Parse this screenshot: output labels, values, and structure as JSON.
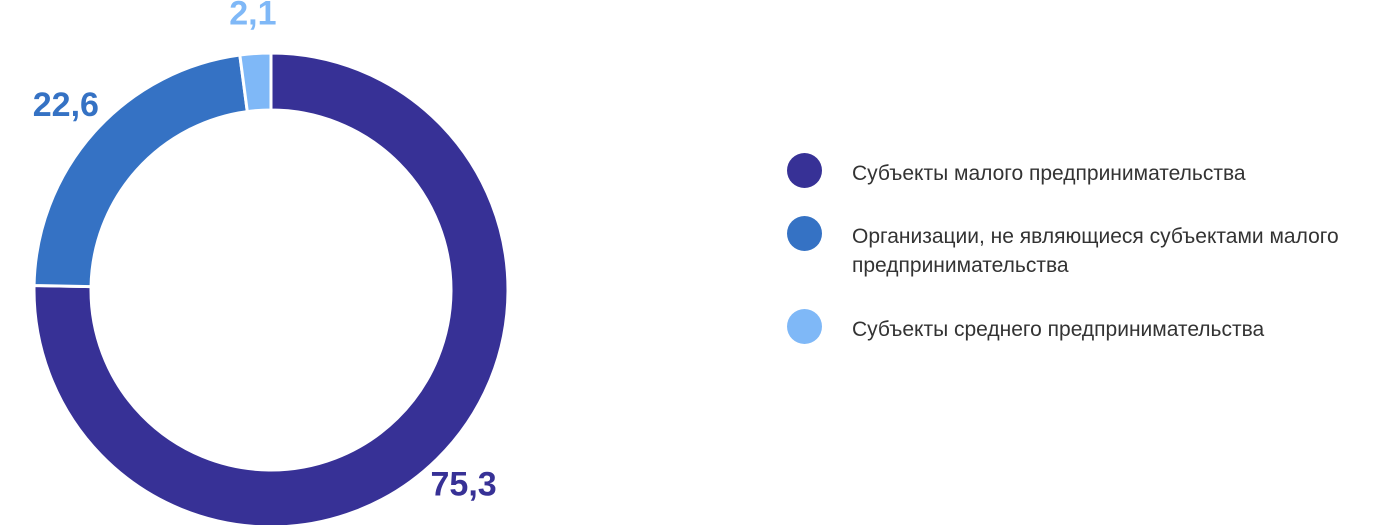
{
  "chart_data": {
    "type": "donut",
    "categories": [
      "Субъекты малого предпринимательства",
      "Организации, не являющиеся субъектами малого предпринимательства",
      "Субъекты среднего предпринимательства"
    ],
    "values": [
      75.3,
      22.6,
      2.1
    ],
    "value_labels": [
      "75,3",
      "22,6",
      "2,1"
    ],
    "colors": [
      "#373196",
      "#3572c4",
      "#7fb8f7"
    ],
    "legend": "right"
  }
}
